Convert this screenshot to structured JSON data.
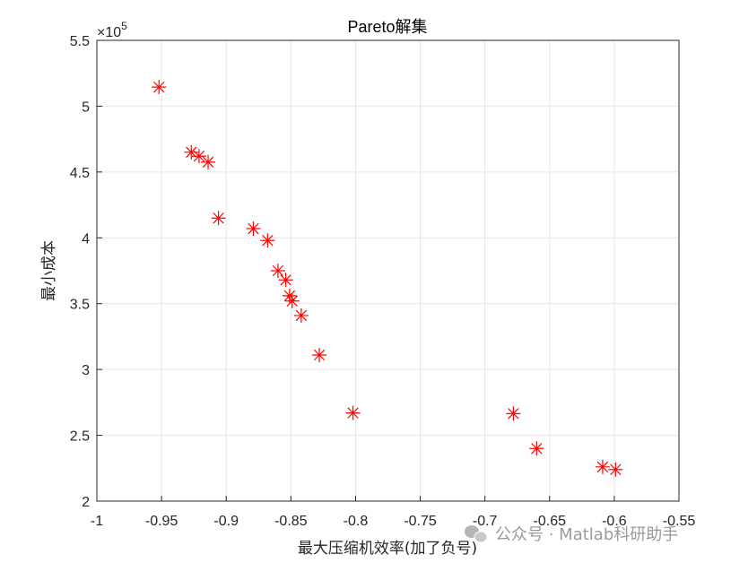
{
  "chart_data": {
    "type": "scatter",
    "title": "Pareto解集",
    "xlabel": "最大压缩机效率(加了负号)",
    "ylabel": "最小成本",
    "y_exponent_label": "×10",
    "y_exponent_power": "5",
    "xlim": [
      -1,
      -0.55
    ],
    "ylim": [
      200000,
      550000
    ],
    "xticks": [
      -1,
      -0.95,
      -0.9,
      -0.85,
      -0.8,
      -0.75,
      -0.7,
      -0.65,
      -0.6,
      -0.55
    ],
    "xtick_labels": [
      "-1",
      "-0.95",
      "-0.9",
      "-0.85",
      "-0.8",
      "-0.75",
      "-0.7",
      "-0.65",
      "-0.6",
      "-0.55"
    ],
    "yticks": [
      200000,
      250000,
      300000,
      350000,
      400000,
      450000,
      500000,
      550000
    ],
    "ytick_labels": [
      "2",
      "2.5",
      "3",
      "3.5",
      "4",
      "4.5",
      "5",
      "5.5"
    ],
    "grid": true,
    "marker": "asterisk",
    "marker_color": "#ff0000",
    "points": [
      {
        "x": -0.952,
        "y": 514500
      },
      {
        "x": -0.927,
        "y": 465000
      },
      {
        "x": -0.921,
        "y": 462000
      },
      {
        "x": -0.914,
        "y": 457500
      },
      {
        "x": -0.906,
        "y": 415000
      },
      {
        "x": -0.879,
        "y": 407000
      },
      {
        "x": -0.868,
        "y": 398000
      },
      {
        "x": -0.86,
        "y": 375000
      },
      {
        "x": -0.854,
        "y": 368000
      },
      {
        "x": -0.851,
        "y": 356000
      },
      {
        "x": -0.849,
        "y": 352000
      },
      {
        "x": -0.842,
        "y": 341000
      },
      {
        "x": -0.828,
        "y": 311000
      },
      {
        "x": -0.802,
        "y": 267000
      },
      {
        "x": -0.678,
        "y": 266500
      },
      {
        "x": -0.66,
        "y": 240000
      },
      {
        "x": -0.609,
        "y": 226000
      },
      {
        "x": -0.599,
        "y": 224000
      }
    ]
  },
  "watermark": {
    "text": "公众号 · Matlab科研助手",
    "icon": "wechat-icon"
  }
}
